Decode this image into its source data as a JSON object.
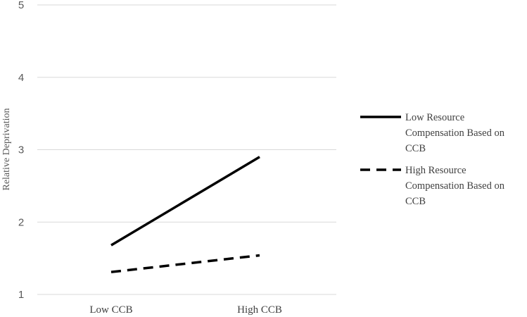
{
  "chart_data": {
    "type": "line",
    "title": "",
    "xlabel": "",
    "ylabel": "Relative Deprivation",
    "categories": [
      "Low CCB",
      "High CCB"
    ],
    "ylim": [
      1,
      5
    ],
    "yticks": [
      "1",
      "2",
      "3",
      "4",
      "5"
    ],
    "grid": true,
    "legend_position": "right",
    "series": [
      {
        "name": "Low Resource Compensation Based on CCB",
        "name_lines": [
          "Low Resource",
          "Compensation Based on",
          "CCB"
        ],
        "values": [
          1.68,
          2.9
        ],
        "line_style": "solid",
        "color": "#000000"
      },
      {
        "name": "High Resource Compensation Based on CCB",
        "name_lines": [
          "High Resource",
          "Compensation Based on",
          "CCB"
        ],
        "values": [
          1.31,
          1.54
        ],
        "line_style": "dashed",
        "color": "#000000"
      }
    ]
  }
}
